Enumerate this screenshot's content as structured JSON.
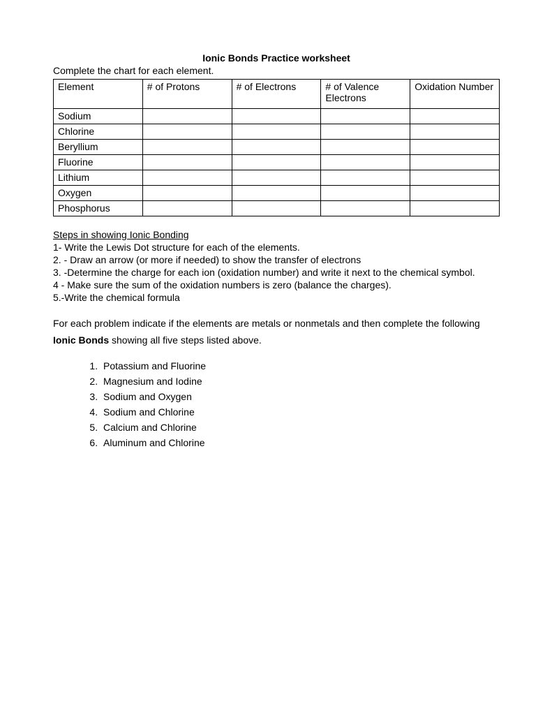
{
  "title": "Ionic Bonds Practice worksheet",
  "instruction": "Complete the chart for each element.",
  "table": {
    "columns": [
      "Element",
      "# of Protons",
      "# of Electrons",
      "# of Valence Electrons",
      "Oxidation Number"
    ],
    "rows": [
      [
        "Sodium",
        "",
        "",
        "",
        ""
      ],
      [
        "Chlorine",
        "",
        "",
        "",
        ""
      ],
      [
        "Beryllium",
        "",
        "",
        "",
        ""
      ],
      [
        "Fluorine",
        "",
        "",
        "",
        ""
      ],
      [
        "Lithium",
        "",
        "",
        "",
        ""
      ],
      [
        "Oxygen",
        "",
        "",
        "",
        ""
      ],
      [
        "Phosphorus",
        "",
        "",
        "",
        ""
      ]
    ]
  },
  "steps_heading": "Steps in showing Ionic Bonding",
  "steps": [
    "1- Write the Lewis Dot structure for each of the elements.",
    "2. - Draw an arrow (or more if needed) to show the transfer of electrons",
    "3. -Determine the charge for each ion (oxidation number) and write it next to the chemical symbol.",
    "4 - Make sure the sum of the oxidation numbers is zero (balance the charges).",
    "5.-Write the chemical formula"
  ],
  "paragraph_pre": "For each problem indicate if the elements are metals or nonmetals and then complete the following ",
  "paragraph_bold": "Ionic Bonds",
  "paragraph_post": " showing all five steps listed above.",
  "problems": [
    "Potassium and Fluorine",
    "Magnesium and Iodine",
    "Sodium and Oxygen",
    "Sodium and Chlorine",
    "Calcium and Chlorine",
    "Aluminum and Chlorine"
  ]
}
